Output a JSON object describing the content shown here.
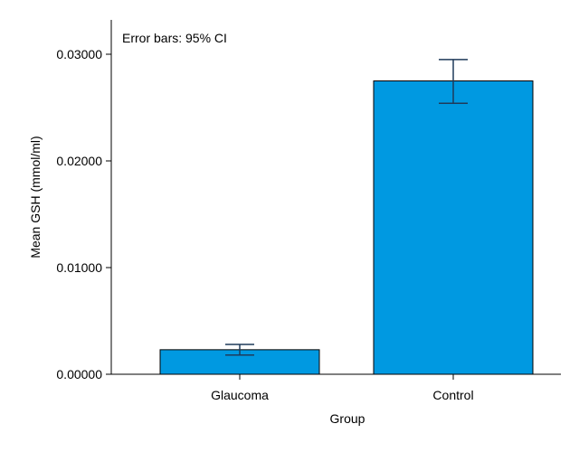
{
  "chart_data": {
    "type": "bar",
    "categories": [
      "Glaucoma",
      "Control"
    ],
    "values": [
      0.0023,
      0.0275
    ],
    "error_bars": {
      "label": "Error bars: 95% CI",
      "lower": [
        0.0018,
        0.0254
      ],
      "upper": [
        0.0028,
        0.0295
      ]
    },
    "xlabel": "Group",
    "ylabel": "Mean GSH (mmol/ml)",
    "ylim": [
      0,
      0.033
    ],
    "yticks": [
      0,
      0.01,
      0.02,
      0.03
    ],
    "ytick_labels": [
      "0.00000",
      "0.01000",
      "0.02000",
      "0.03000"
    ],
    "grid": false,
    "colors": {
      "bar": "#0099e1",
      "edge": "#000000",
      "error": "#1f3a5a"
    }
  }
}
